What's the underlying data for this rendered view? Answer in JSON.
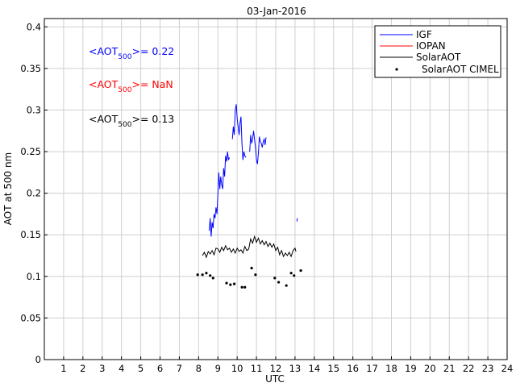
{
  "chart_data": {
    "type": "line",
    "title": "03-Jan-2016",
    "xlabel": "UTC",
    "ylabel": "AOT at 500 nm",
    "xlim": [
      0,
      24
    ],
    "ylim": [
      0,
      0.41
    ],
    "grid": true,
    "xticks": [
      "1",
      "2",
      "3",
      "4",
      "5",
      "6",
      "7",
      "8",
      "9",
      "10",
      "11",
      "12",
      "13",
      "14",
      "15",
      "16",
      "17",
      "18",
      "19",
      "20",
      "21",
      "22",
      "23",
      "24"
    ],
    "yticks": [
      "0",
      "0.05",
      "0.1",
      "0.15",
      "0.2",
      "0.25",
      "0.3",
      "0.35",
      "0.4"
    ],
    "legend_placement": "top-right",
    "annotations": [
      {
        "prefix": "<AOT",
        "sub": "500",
        "suffix": ">= 0.22",
        "color": "#0000ff"
      },
      {
        "prefix": "<AOT",
        "sub": "500",
        "suffix": ">=  NaN",
        "color": "#ff0000"
      },
      {
        "prefix": "<AOT",
        "sub": "500",
        "suffix": ">= 0.13",
        "color": "#000000"
      }
    ],
    "series": [
      {
        "name": "IGF",
        "color": "#0000ff",
        "style": "line",
        "segments": [
          [
            [
              8.55,
              0.155
            ],
            [
              8.6,
              0.17
            ],
            [
              8.65,
              0.148
            ],
            [
              8.7,
              0.165
            ],
            [
              8.75,
              0.158
            ],
            [
              8.8,
              0.175
            ],
            [
              8.85,
              0.17
            ],
            [
              8.9,
              0.183
            ],
            [
              8.95,
              0.175
            ],
            [
              9.0,
              0.2
            ],
            [
              9.05,
              0.225
            ],
            [
              9.1,
              0.205
            ],
            [
              9.15,
              0.22
            ],
            [
              9.2,
              0.21
            ],
            [
              9.25,
              0.205
            ],
            [
              9.3,
              0.23
            ],
            [
              9.35,
              0.22
            ],
            [
              9.4,
              0.245
            ],
            [
              9.45,
              0.238
            ],
            [
              9.5,
              0.25
            ],
            [
              9.55,
              0.24
            ],
            [
              9.6,
              0.243
            ]
          ],
          [
            [
              9.75,
              0.265
            ],
            [
              9.8,
              0.28
            ],
            [
              9.85,
              0.27
            ],
            [
              9.9,
              0.3
            ],
            [
              9.95,
              0.307
            ],
            [
              10.0,
              0.29
            ],
            [
              10.05,
              0.28
            ],
            [
              10.1,
              0.27
            ],
            [
              10.15,
              0.285
            ],
            [
              10.2,
              0.292
            ],
            [
              10.25,
              0.26
            ],
            [
              10.3,
              0.24
            ],
            [
              10.35,
              0.25
            ],
            [
              10.4,
              0.245
            ],
            [
              10.45,
              0.243
            ]
          ],
          [
            [
              10.65,
              0.25
            ],
            [
              10.7,
              0.27
            ],
            [
              10.75,
              0.26
            ],
            [
              10.8,
              0.265
            ],
            [
              10.85,
              0.275
            ],
            [
              10.9,
              0.265
            ],
            [
              10.95,
              0.255
            ],
            [
              11.0,
              0.24
            ],
            [
              11.05,
              0.235
            ],
            [
              11.1,
              0.248
            ],
            [
              11.15,
              0.268
            ],
            [
              11.2,
              0.262
            ],
            [
              11.25,
              0.26
            ],
            [
              11.3,
              0.255
            ],
            [
              11.35,
              0.262
            ],
            [
              11.4,
              0.265
            ],
            [
              11.45,
              0.258
            ],
            [
              11.5,
              0.267
            ]
          ],
          [
            [
              13.1,
              0.166
            ],
            [
              13.12,
              0.17
            ]
          ]
        ]
      },
      {
        "name": "IOPAN",
        "color": "#ff0000",
        "style": "line",
        "segments": []
      },
      {
        "name": "SolarAOT",
        "color": "#000000",
        "style": "line",
        "segments": [
          [
            [
              8.2,
              0.125
            ],
            [
              8.3,
              0.129
            ],
            [
              8.4,
              0.123
            ],
            [
              8.5,
              0.13
            ],
            [
              8.6,
              0.127
            ],
            [
              8.7,
              0.131
            ],
            [
              8.8,
              0.126
            ],
            [
              8.9,
              0.134
            ],
            [
              9.0,
              0.133
            ],
            [
              9.1,
              0.129
            ],
            [
              9.2,
              0.135
            ],
            [
              9.3,
              0.131
            ],
            [
              9.4,
              0.137
            ],
            [
              9.5,
              0.132
            ],
            [
              9.6,
              0.134
            ],
            [
              9.7,
              0.129
            ],
            [
              9.8,
              0.133
            ],
            [
              9.9,
              0.128
            ],
            [
              10.0,
              0.134
            ],
            [
              10.1,
              0.13
            ],
            [
              10.2,
              0.132
            ],
            [
              10.3,
              0.128
            ],
            [
              10.4,
              0.136
            ],
            [
              10.5,
              0.131
            ],
            [
              10.6,
              0.133
            ],
            [
              10.7,
              0.145
            ],
            [
              10.8,
              0.14
            ],
            [
              10.9,
              0.148
            ],
            [
              11.0,
              0.141
            ],
            [
              11.1,
              0.146
            ],
            [
              11.2,
              0.139
            ],
            [
              11.3,
              0.143
            ],
            [
              11.4,
              0.138
            ],
            [
              11.5,
              0.142
            ],
            [
              11.6,
              0.136
            ],
            [
              11.7,
              0.14
            ],
            [
              11.8,
              0.135
            ],
            [
              11.9,
              0.139
            ],
            [
              12.0,
              0.131
            ],
            [
              12.1,
              0.135
            ],
            [
              12.2,
              0.126
            ],
            [
              12.3,
              0.131
            ],
            [
              12.4,
              0.124
            ],
            [
              12.5,
              0.128
            ],
            [
              12.6,
              0.125
            ],
            [
              12.7,
              0.129
            ],
            [
              12.8,
              0.124
            ],
            [
              12.9,
              0.131
            ],
            [
              13.0,
              0.134
            ],
            [
              13.05,
              0.13
            ]
          ]
        ]
      },
      {
        "name": "SolarAOT CIMEL",
        "color": "#000000",
        "style": "points",
        "points": [
          [
            7.95,
            0.102
          ],
          [
            8.2,
            0.102
          ],
          [
            8.4,
            0.104
          ],
          [
            8.6,
            0.101
          ],
          [
            8.75,
            0.098
          ],
          [
            9.45,
            0.092
          ],
          [
            9.65,
            0.09
          ],
          [
            9.85,
            0.091
          ],
          [
            10.25,
            0.087
          ],
          [
            10.4,
            0.087
          ],
          [
            10.75,
            0.11
          ],
          [
            10.95,
            0.102
          ],
          [
            11.95,
            0.098
          ],
          [
            12.15,
            0.093
          ],
          [
            12.55,
            0.089
          ],
          [
            12.8,
            0.104
          ],
          [
            12.95,
            0.101
          ],
          [
            13.3,
            0.107
          ]
        ]
      }
    ]
  }
}
